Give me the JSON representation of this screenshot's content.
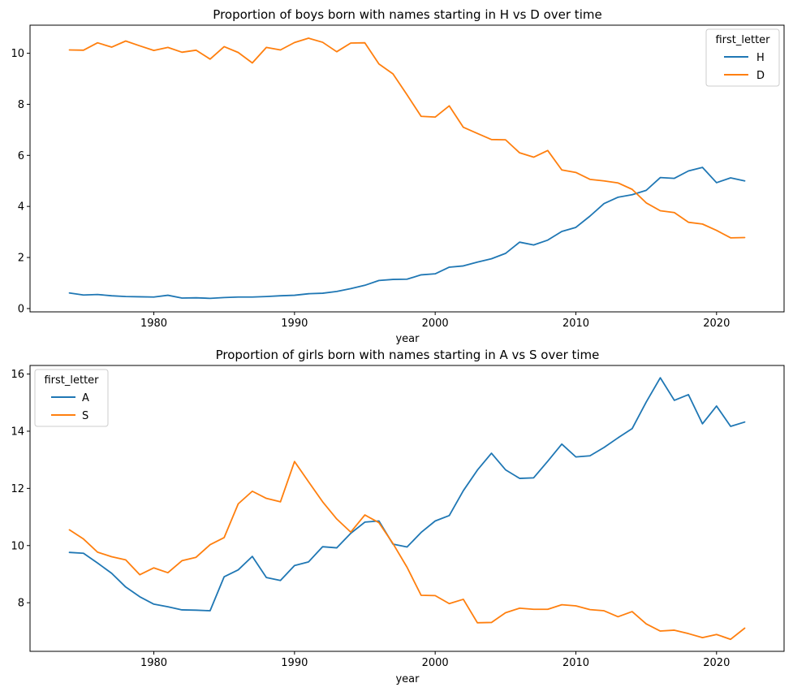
{
  "chart_data": [
    {
      "type": "line",
      "title": "Proportion of boys born with names starting in H vs D over time",
      "xlabel": "year",
      "ylabel": "",
      "xlim": [
        1971.2,
        2024.8
      ],
      "ylim": [
        -0.13,
        11.1
      ],
      "xticks": [
        1980,
        1990,
        2000,
        2010,
        2020
      ],
      "yticks": [
        0,
        2,
        4,
        6,
        8,
        10
      ],
      "legend": {
        "title": "first_letter",
        "placement": "top-right"
      },
      "x": [
        1974,
        1975,
        1976,
        1977,
        1978,
        1979,
        1980,
        1981,
        1982,
        1983,
        1984,
        1985,
        1986,
        1987,
        1988,
        1989,
        1990,
        1991,
        1992,
        1993,
        1994,
        1995,
        1996,
        1997,
        1998,
        1999,
        2000,
        2001,
        2002,
        2003,
        2004,
        2005,
        2006,
        2007,
        2008,
        2009,
        2010,
        2011,
        2012,
        2013,
        2014,
        2015,
        2016,
        2017,
        2018,
        2019,
        2020,
        2021,
        2022
      ],
      "series": [
        {
          "name": "H",
          "color": "#1f77b4",
          "values": [
            0.61,
            0.53,
            0.55,
            0.5,
            0.47,
            0.46,
            0.45,
            0.52,
            0.41,
            0.42,
            0.4,
            0.43,
            0.45,
            0.45,
            0.47,
            0.5,
            0.52,
            0.58,
            0.6,
            0.67,
            0.78,
            0.91,
            1.1,
            1.14,
            1.15,
            1.32,
            1.36,
            1.62,
            1.67,
            1.82,
            1.95,
            2.16,
            2.6,
            2.49,
            2.68,
            3.02,
            3.18,
            3.62,
            4.11,
            4.36,
            4.46,
            4.63,
            5.13,
            5.1,
            5.39,
            5.53,
            4.93,
            5.12,
            5.0
          ]
        },
        {
          "name": "D",
          "color": "#ff7f0e",
          "values": [
            10.13,
            10.12,
            10.41,
            10.24,
            10.48,
            10.29,
            10.11,
            10.23,
            10.04,
            10.12,
            9.77,
            10.26,
            10.03,
            9.62,
            10.23,
            10.13,
            10.42,
            10.59,
            10.43,
            10.06,
            10.4,
            10.41,
            9.58,
            9.19,
            8.37,
            7.53,
            7.5,
            7.94,
            7.1,
            6.86,
            6.62,
            6.61,
            6.1,
            5.93,
            6.19,
            5.43,
            5.33,
            5.06,
            5.0,
            4.92,
            4.67,
            4.14,
            3.83,
            3.76,
            3.38,
            3.31,
            3.06,
            2.77,
            2.78
          ]
        }
      ]
    },
    {
      "type": "line",
      "title": "Proportion of girls born with names starting in A vs S over time",
      "xlabel": "year",
      "ylabel": "",
      "xlim": [
        1971.2,
        2024.8
      ],
      "ylim": [
        6.3,
        16.3
      ],
      "xticks": [
        1980,
        1990,
        2000,
        2010,
        2020
      ],
      "yticks": [
        8,
        10,
        12,
        14,
        16
      ],
      "legend": {
        "title": "first_letter",
        "placement": "top-left"
      },
      "x": [
        1974,
        1975,
        1976,
        1977,
        1978,
        1979,
        1980,
        1981,
        1982,
        1983,
        1984,
        1985,
        1986,
        1987,
        1988,
        1989,
        1990,
        1991,
        1992,
        1993,
        1994,
        1995,
        1996,
        1997,
        1998,
        1999,
        2000,
        2001,
        2002,
        2003,
        2004,
        2005,
        2006,
        2007,
        2008,
        2009,
        2010,
        2011,
        2012,
        2013,
        2014,
        2015,
        2016,
        2017,
        2018,
        2019,
        2020,
        2021,
        2022
      ],
      "series": [
        {
          "name": "A",
          "color": "#1f77b4",
          "values": [
            9.76,
            9.73,
            9.39,
            9.03,
            8.55,
            8.21,
            7.95,
            7.86,
            7.75,
            7.74,
            7.72,
            8.91,
            9.15,
            9.62,
            8.88,
            8.78,
            9.3,
            9.43,
            9.96,
            9.92,
            10.43,
            10.82,
            10.86,
            10.05,
            9.95,
            10.46,
            10.86,
            11.05,
            11.92,
            12.64,
            13.23,
            12.65,
            12.35,
            12.37,
            12.95,
            13.55,
            13.1,
            13.14,
            13.43,
            13.77,
            14.09,
            15.02,
            15.87,
            15.08,
            15.28,
            14.26,
            14.88,
            14.17,
            14.32
          ]
        },
        {
          "name": "S",
          "color": "#ff7f0e",
          "values": [
            10.55,
            10.23,
            9.77,
            9.61,
            9.5,
            8.98,
            9.22,
            9.05,
            9.47,
            9.59,
            10.03,
            10.28,
            11.46,
            11.9,
            11.65,
            11.53,
            12.94,
            12.23,
            11.53,
            10.93,
            10.47,
            11.07,
            10.8,
            10.07,
            9.24,
            8.26,
            8.25,
            7.97,
            8.12,
            7.3,
            7.31,
            7.65,
            7.81,
            7.77,
            7.77,
            7.93,
            7.89,
            7.76,
            7.72,
            7.51,
            7.69,
            7.26,
            7.01,
            7.04,
            6.92,
            6.78,
            6.89,
            6.72,
            7.11
          ]
        }
      ]
    }
  ]
}
